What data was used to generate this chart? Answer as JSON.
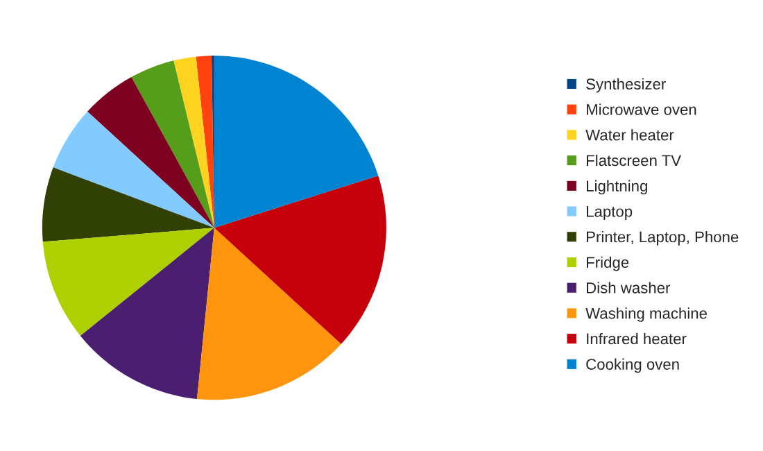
{
  "chart_data": {
    "type": "pie",
    "categories": [
      "Synthesizer",
      "Microwave oven",
      "Water heater",
      "Flatscreen TV",
      "Lightning",
      "Laptop",
      "Printer, Laptop, Phone",
      "Fridge",
      "Dish washer",
      "Washing machine",
      "Infrared heater",
      "Cooking oven"
    ],
    "values": [
      0.25,
      1.45,
      2.1,
      4.2,
      5.2,
      6.1,
      7.0,
      9.5,
      12.6,
      14.8,
      16.7,
      20.1
    ],
    "colors": [
      "#004586",
      "#ff420e",
      "#ffd320",
      "#579d1c",
      "#7e0021",
      "#83caff",
      "#314004",
      "#aecf00",
      "#4b1f6f",
      "#ff950e",
      "#c5000b",
      "#0084d1"
    ],
    "legend": "right"
  }
}
